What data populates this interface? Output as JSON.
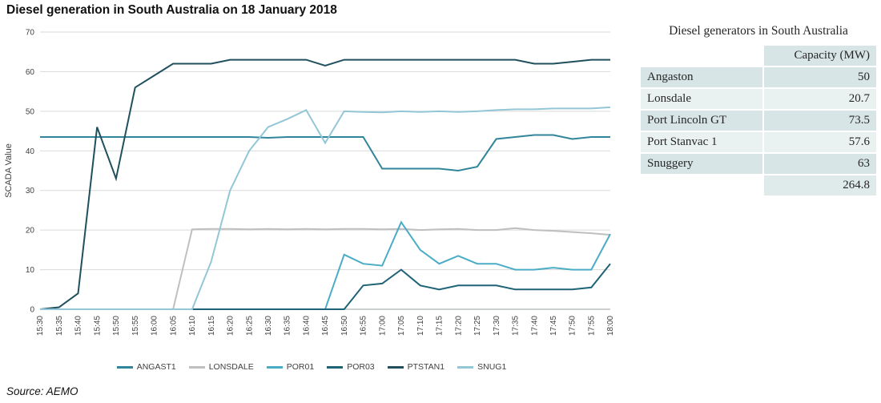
{
  "title": "Diesel generation in South Australia on 18 January 2018",
  "source": "Source: AEMO",
  "chart_data": {
    "type": "line",
    "title": "Diesel generation in South Australia on 18 January 2018",
    "xlabel": "",
    "ylabel": "SCADA Value",
    "ylim": [
      0,
      70
    ],
    "ytick_step": 10,
    "grid": true,
    "legend_position": "bottom",
    "x": [
      "15:30",
      "15:35",
      "15:40",
      "15:45",
      "15:50",
      "15:55",
      "16:00",
      "16:05",
      "16:10",
      "16:15",
      "16:20",
      "16:25",
      "16:30",
      "16:35",
      "16:40",
      "16:45",
      "16:50",
      "16:55",
      "17:00",
      "17:05",
      "17:10",
      "17:15",
      "17:20",
      "17:25",
      "17:30",
      "17:35",
      "17:40",
      "17:45",
      "17:50",
      "17:55",
      "18:00"
    ],
    "series": [
      {
        "name": "ANGAST1",
        "color": "#31859b",
        "values": [
          43.5,
          43.5,
          43.5,
          43.5,
          43.5,
          43.5,
          43.5,
          43.5,
          43.5,
          43.5,
          43.5,
          43.5,
          43.3,
          43.5,
          43.5,
          43.5,
          43.5,
          43.5,
          35.5,
          35.5,
          35.5,
          35.5,
          35,
          36,
          43,
          43.5,
          44,
          44,
          43,
          43.5,
          43.5
        ]
      },
      {
        "name": "LONSDALE",
        "color": "#bfbfbf",
        "values": [
          0,
          0,
          0,
          0,
          0,
          0,
          0,
          0,
          20.2,
          20.3,
          20.3,
          20.2,
          20.3,
          20.2,
          20.3,
          20.2,
          20.3,
          20.3,
          20.2,
          20.3,
          20,
          20.2,
          20.3,
          20,
          20,
          20.5,
          20,
          19.8,
          19.5,
          19.2,
          18.8
        ]
      },
      {
        "name": "POR01",
        "color": "#4bacc6",
        "values": [
          0,
          0,
          0,
          0,
          0,
          0,
          0,
          0,
          0,
          0,
          0,
          0,
          0,
          0,
          0,
          0,
          13.8,
          11.5,
          11,
          22,
          15,
          11.5,
          13.5,
          11.5,
          11.5,
          10,
          10,
          10.5,
          10,
          10,
          19
        ]
      },
      {
        "name": "POR03",
        "color": "#1f6377",
        "values": [
          0,
          0,
          0,
          0,
          0,
          0,
          0,
          0,
          0,
          0,
          0,
          0,
          0,
          0,
          0,
          0,
          0,
          6,
          6.5,
          10,
          6,
          5,
          6,
          6,
          6,
          5,
          5,
          5,
          5,
          5.5,
          11.5
        ]
      },
      {
        "name": "PTSTAN1",
        "color": "#20505e",
        "values": [
          0,
          0.5,
          4,
          46,
          33,
          56,
          59,
          62,
          62,
          62,
          63,
          63,
          63,
          63,
          63,
          61.5,
          63,
          63,
          63,
          63,
          63,
          63,
          63,
          63,
          63,
          63,
          62,
          62,
          62.5,
          63,
          63
        ]
      },
      {
        "name": "SNUG1",
        "color": "#93c6d6",
        "values": [
          0,
          0,
          0,
          0,
          0,
          0,
          0,
          0,
          0,
          12,
          30,
          40,
          46,
          48,
          50.3,
          42,
          50,
          49.8,
          49.7,
          50,
          49.8,
          50,
          49.8,
          50,
          50.3,
          50.5,
          50.5,
          50.7,
          50.7,
          50.7,
          51
        ]
      }
    ]
  },
  "table": {
    "title": "Diesel generators in South Australia",
    "columns": [
      "",
      "Capacity (MW)"
    ],
    "rows": [
      [
        "Angaston",
        "50"
      ],
      [
        "Lonsdale",
        "20.7"
      ],
      [
        "Port Lincoln GT",
        "73.5"
      ],
      [
        "Port Stanvac 1",
        "57.6"
      ],
      [
        "Snuggery",
        "63"
      ],
      [
        "",
        "264.8"
      ]
    ]
  }
}
